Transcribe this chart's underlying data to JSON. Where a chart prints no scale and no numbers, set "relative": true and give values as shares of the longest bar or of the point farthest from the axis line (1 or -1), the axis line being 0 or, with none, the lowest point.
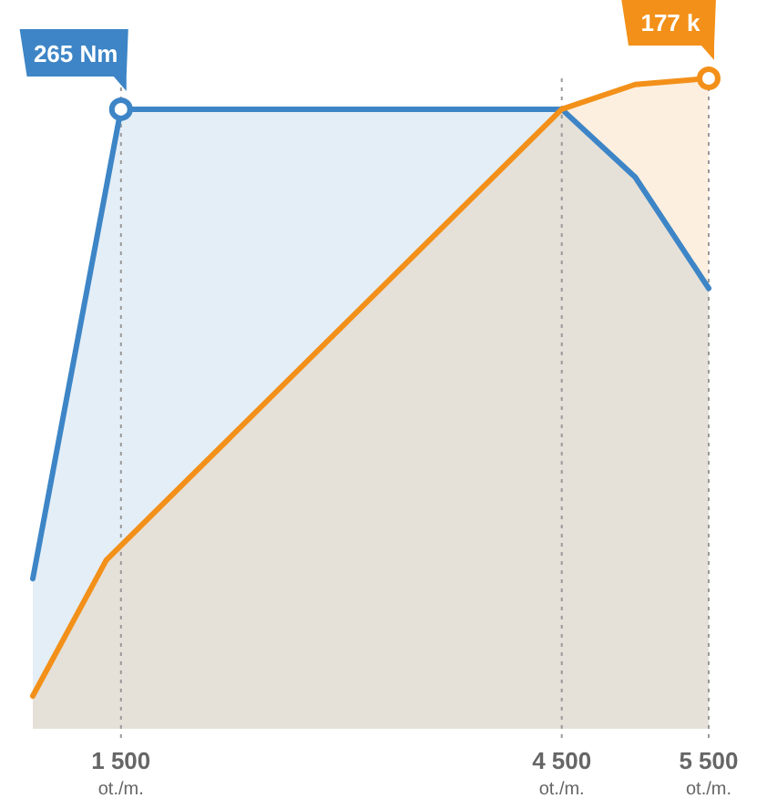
{
  "chart_data": {
    "type": "area",
    "relative": true,
    "xlim": [
      900,
      5500
    ],
    "xticks": [
      {
        "value": 1500,
        "label": "1 500\not./m."
      },
      {
        "value": 4500,
        "label": "4 500\not./m."
      },
      {
        "value": 5500,
        "label": "5 500\not./m."
      }
    ],
    "grid": "x",
    "annotations": [
      {
        "text": "265 Nm",
        "x": 1500,
        "y": 0.95
      },
      {
        "text": "177 k",
        "x": 5500,
        "y": 1
      }
    ],
    "series": [
      {
        "color": "#3d85c6",
        "x": [
          900,
          1500,
          4500,
          5000,
          5500
        ],
        "values": [
          0.19,
          0.95,
          0.95,
          0.84,
          0.66
        ]
      },
      {
        "color": "#f39019",
        "x": [
          900,
          1400,
          4500,
          5000,
          5500
        ],
        "values": [
          0,
          0.22,
          0.95,
          0.99,
          1
        ]
      }
    ]
  }
}
